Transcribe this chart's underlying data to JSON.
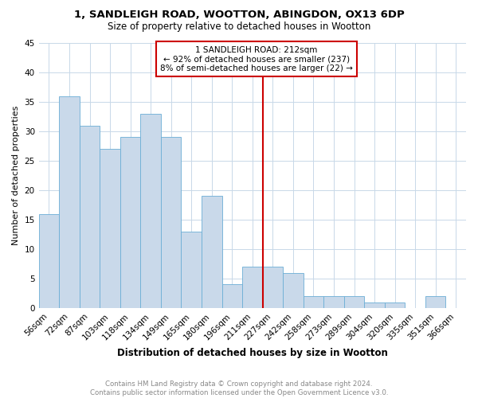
{
  "title": "1, SANDLEIGH ROAD, WOOTTON, ABINGDON, OX13 6DP",
  "subtitle": "Size of property relative to detached houses in Wootton",
  "xlabel": "Distribution of detached houses by size in Wootton",
  "ylabel": "Number of detached properties",
  "categories": [
    "56sqm",
    "72sqm",
    "87sqm",
    "103sqm",
    "118sqm",
    "134sqm",
    "149sqm",
    "165sqm",
    "180sqm",
    "196sqm",
    "211sqm",
    "227sqm",
    "242sqm",
    "258sqm",
    "273sqm",
    "289sqm",
    "304sqm",
    "320sqm",
    "335sqm",
    "351sqm",
    "366sqm"
  ],
  "values": [
    16,
    36,
    31,
    27,
    29,
    33,
    29,
    13,
    19,
    4,
    7,
    7,
    6,
    2,
    2,
    2,
    1,
    1,
    0,
    2,
    0
  ],
  "bar_color": "#c9d9ea",
  "bar_edge_color": "#6baed6",
  "vline_x_idx": 10,
  "vline_color": "#cc0000",
  "annotation_title": "1 SANDLEIGH ROAD: 212sqm",
  "annotation_line1": "← 92% of detached houses are smaller (237)",
  "annotation_line2": "8% of semi-detached houses are larger (22) →",
  "annotation_box_color": "#cc0000",
  "ylim": [
    0,
    45
  ],
  "yticks": [
    0,
    5,
    10,
    15,
    20,
    25,
    30,
    35,
    40,
    45
  ],
  "footnote": "Contains HM Land Registry data © Crown copyright and database right 2024.\nContains public sector information licensed under the Open Government Licence v3.0.",
  "bg_color": "#ffffff",
  "grid_color": "#c8d8e8"
}
